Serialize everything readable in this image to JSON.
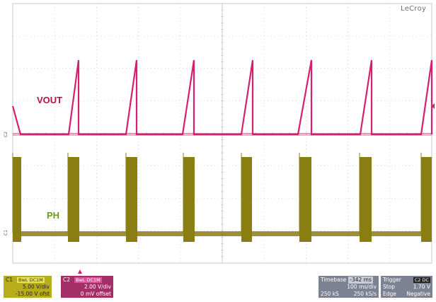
{
  "brand": "LeCroy",
  "labels": {
    "vout": "VOUT",
    "ph": "PH"
  },
  "markers": {
    "c2": "C2",
    "c1": "C1"
  },
  "colors": {
    "ch1": "#8a7d12",
    "ch1_panel": "#b7ac1a",
    "ch2": "#d4206e",
    "ch2_panel": "#a42f66",
    "grid": "#c8c8c8",
    "panel_grey": "#7d8292"
  },
  "channel1": {
    "name": "C1",
    "coupling": "BwL DC1M",
    "scale": "5.00 V/div",
    "offset": "-15.00 V ofst"
  },
  "channel2": {
    "name": "C2",
    "coupling": "BwL DC1M",
    "scale": "2.00 V/div",
    "offset": "0 mV offset"
  },
  "timebase": {
    "label": "Timebase",
    "delay": "-342 ms",
    "scale": "100 ms/div",
    "samples": "250 kS",
    "rate": "250 kS/s"
  },
  "trigger": {
    "label": "Trigger",
    "channel": "C2 DC",
    "mode": "Stop",
    "level": "1.70 V",
    "type": "Edge",
    "slope": "Negative"
  },
  "icons": {
    "trigger_position": "triangle-up-icon",
    "level_marker": "triangle-left-icon"
  }
}
